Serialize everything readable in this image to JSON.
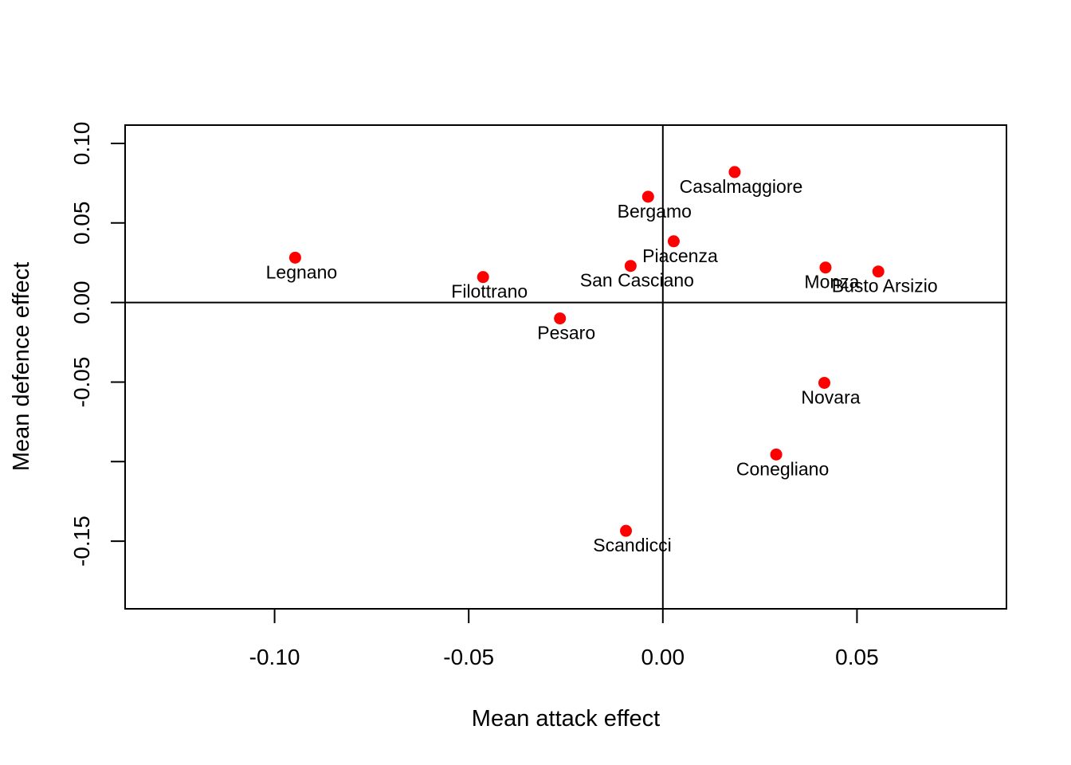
{
  "chart_data": {
    "type": "scatter",
    "title": "",
    "xlabel": "Mean attack effect",
    "ylabel": "Mean defence effect",
    "xlim": [
      -0.1385,
      0.0885
    ],
    "ylim": [
      -0.1925,
      0.1115
    ],
    "xticks": [
      -0.1,
      -0.05,
      0.0,
      0.05
    ],
    "xtick_labels": [
      "-0.10",
      "-0.05",
      "0.00",
      "0.05"
    ],
    "yticks": [
      -0.15,
      -0.1,
      -0.05,
      0.0,
      0.05,
      0.1
    ],
    "ytick_labels": [
      "-0.15",
      "",
      "-0.05",
      "0.00",
      "0.05",
      "0.10"
    ],
    "reference_lines": {
      "x": 0,
      "y": 0
    },
    "point_color": "#ff0000",
    "grid": false,
    "legend": "none",
    "points": [
      {
        "label": "Casalmaggiore",
        "x": 0.0185,
        "y": 0.082
      },
      {
        "label": "Bergamo",
        "x": -0.0038,
        "y": 0.0665
      },
      {
        "label": "Piacenza",
        "x": 0.0028,
        "y": 0.0385
      },
      {
        "label": "Legnano",
        "x": -0.0947,
        "y": 0.0282
      },
      {
        "label": "San Casciano",
        "x": -0.0083,
        "y": 0.023
      },
      {
        "label": "Monza",
        "x": 0.0419,
        "y": 0.022
      },
      {
        "label": "Busto Arsizio",
        "x": 0.0555,
        "y": 0.0195
      },
      {
        "label": "Filottrano",
        "x": -0.0463,
        "y": 0.016
      },
      {
        "label": "Pesaro",
        "x": -0.0265,
        "y": -0.01
      },
      {
        "label": "Novara",
        "x": 0.0416,
        "y": -0.0505
      },
      {
        "label": "Conegliano",
        "x": 0.0292,
        "y": -0.0955
      },
      {
        "label": "Scandicci",
        "x": -0.0095,
        "y": -0.1435
      }
    ]
  }
}
